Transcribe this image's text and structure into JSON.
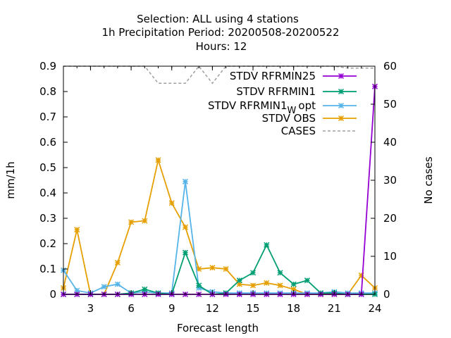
{
  "chart_data": {
    "type": "line",
    "title_lines": [
      "Selection: ALL using     4 stations",
      "1h Precipitation   Period: 20200508-20200522",
      "Hours:  12"
    ],
    "xlabel": "Forecast length",
    "ylabel": "mm/1h",
    "y2label": "No cases",
    "xlim": [
      1,
      24
    ],
    "ylim": [
      0,
      0.9
    ],
    "y2lim": [
      0,
      60
    ],
    "x_ticks": [
      3,
      6,
      9,
      12,
      15,
      18,
      21,
      24
    ],
    "y_ticks": [
      "0",
      "0.1",
      "0.2",
      "0.3",
      "0.4",
      "0.5",
      "0.6",
      "0.7",
      "0.8",
      "0.9"
    ],
    "y2_ticks": [
      "0",
      "10",
      "20",
      "30",
      "40",
      "50",
      "60"
    ],
    "grid": false,
    "legend_position": "top-right",
    "x": [
      1,
      2,
      3,
      4,
      5,
      6,
      7,
      8,
      9,
      10,
      11,
      12,
      13,
      14,
      15,
      16,
      17,
      18,
      19,
      20,
      21,
      22,
      23,
      24
    ],
    "series": [
      {
        "name": "STDV RFRMIN25",
        "label_main": "STDV RFRMIN25",
        "label_sub": "",
        "label_tail": "",
        "color": "#9400d3",
        "axis": "y",
        "style": "solid",
        "marker": "x",
        "values": [
          0,
          0,
          0,
          0,
          0,
          0,
          0,
          0,
          0,
          0,
          0,
          0,
          0,
          0,
          0,
          0,
          0,
          0,
          0,
          0,
          0,
          0,
          0,
          0.82
        ]
      },
      {
        "name": "STDV RFRMIN1",
        "label_main": "STDV RFRMIN1",
        "label_sub": "",
        "label_tail": "",
        "color": "#009e73",
        "axis": "y",
        "style": "solid",
        "marker": "x",
        "values": [
          0,
          0,
          0,
          0,
          0,
          0.005,
          0.02,
          0.005,
          0,
          0.165,
          0.035,
          0,
          0.005,
          0.055,
          0.085,
          0.195,
          0.085,
          0.04,
          0.055,
          0.005,
          0.005,
          0,
          0,
          0
        ]
      },
      {
        "name": "STDV RFRMIN1W opt",
        "label_main": "STDV RFRMIN1",
        "label_sub": "W",
        "label_tail": "opt",
        "color": "#56b4e9",
        "axis": "y",
        "style": "solid",
        "marker": "x",
        "values": [
          0.095,
          0.015,
          0.005,
          0.03,
          0.04,
          0.005,
          0.01,
          0.005,
          0.005,
          0.445,
          0.025,
          0.01,
          0.005,
          0.005,
          0.005,
          0.005,
          0.005,
          0.005,
          0.005,
          0.005,
          0.01,
          0.005,
          0.005,
          0.005
        ]
      },
      {
        "name": "STDV OBS",
        "label_main": "STDV OBS",
        "label_sub": "",
        "label_tail": "",
        "color": "#e69f00",
        "axis": "y",
        "style": "solid",
        "marker": "x",
        "values": [
          0.025,
          0.255,
          0,
          0,
          0.125,
          0.285,
          0.29,
          0.53,
          0.36,
          0.265,
          0.1,
          0.105,
          0.1,
          0.04,
          0.035,
          0.045,
          0.035,
          0.02,
          0,
          0,
          0,
          0,
          0.075,
          0.025
        ]
      },
      {
        "name": "CASES",
        "label_main": "CASES",
        "label_sub": "",
        "label_tail": "",
        "color": "#a0a0a0",
        "axis": "y2",
        "style": "dashed",
        "marker": "none",
        "values": [
          60,
          60,
          60,
          60,
          60,
          60,
          60,
          55.5,
          55.5,
          55.5,
          60,
          55.5,
          60,
          60,
          60,
          60,
          60,
          60,
          60,
          60,
          60,
          59.5,
          59.5,
          59.5
        ]
      }
    ]
  }
}
